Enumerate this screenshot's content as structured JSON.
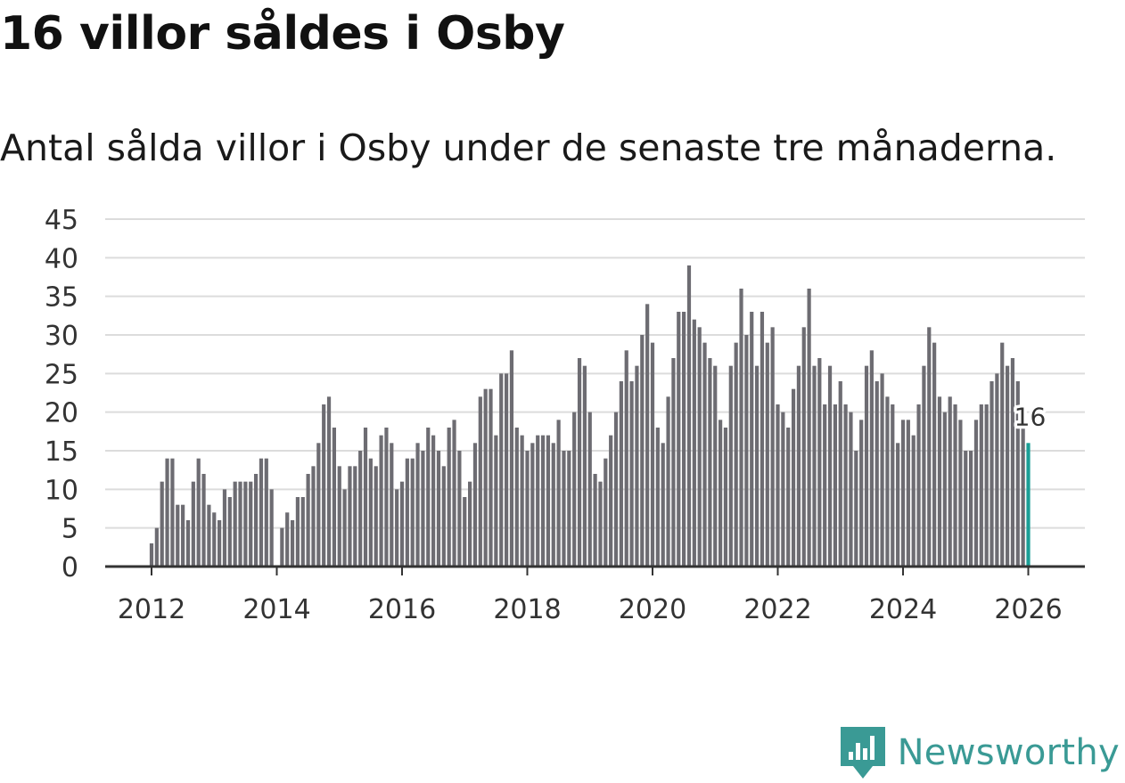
{
  "title": "16 villor såldes i Osby",
  "subtitle": "Antal sålda villor i Osby under de senaste tre månaderna.",
  "brand": {
    "name": "Newsworthy",
    "icon": "newsworthy-logo-icon",
    "color": "#3a9a95"
  },
  "chart_data": {
    "type": "bar",
    "title": "16 villor såldes i Osby",
    "xlabel": "",
    "ylabel": "",
    "ylim": [
      0,
      45
    ],
    "yticks": [
      "0",
      "5",
      "10",
      "15",
      "20",
      "25",
      "30",
      "35",
      "40",
      "45"
    ],
    "xticks": [
      "2012",
      "2014",
      "2016",
      "2018",
      "2020",
      "2022",
      "2024",
      "2026"
    ],
    "grid": true,
    "bar_color": "#6d6c72",
    "highlight_color": "#1a9e96",
    "start": "2012-01",
    "end": "2026-01",
    "annotation": {
      "label": "16",
      "month": "2026-01"
    },
    "values": [
      3,
      5,
      11,
      14,
      14,
      8,
      8,
      6,
      11,
      14,
      12,
      8,
      7,
      6,
      10,
      9,
      11,
      11,
      11,
      11,
      12,
      14,
      14,
      10,
      0,
      5,
      7,
      6,
      9,
      9,
      12,
      13,
      16,
      21,
      22,
      18,
      13,
      10,
      13,
      13,
      15,
      18,
      14,
      13,
      17,
      18,
      16,
      10,
      11,
      14,
      14,
      16,
      15,
      18,
      17,
      15,
      13,
      18,
      19,
      15,
      9,
      11,
      16,
      22,
      23,
      23,
      17,
      25,
      25,
      28,
      18,
      17,
      15,
      16,
      17,
      17,
      17,
      16,
      19,
      15,
      15,
      20,
      27,
      26,
      20,
      12,
      11,
      14,
      17,
      20,
      24,
      28,
      24,
      26,
      30,
      34,
      29,
      18,
      16,
      22,
      27,
      33,
      33,
      39,
      32,
      31,
      29,
      27,
      26,
      19,
      18,
      26,
      29,
      36,
      30,
      33,
      26,
      33,
      29,
      31,
      21,
      20,
      18,
      23,
      26,
      31,
      36,
      26,
      27,
      21,
      26,
      21,
      24,
      21,
      20,
      15,
      19,
      26,
      28,
      24,
      25,
      22,
      21,
      16,
      19,
      19,
      17,
      21,
      26,
      31,
      29,
      22,
      20,
      22,
      21,
      19,
      15,
      15,
      19,
      21,
      21,
      24,
      25,
      29,
      26,
      27,
      24,
      18,
      16
    ]
  }
}
